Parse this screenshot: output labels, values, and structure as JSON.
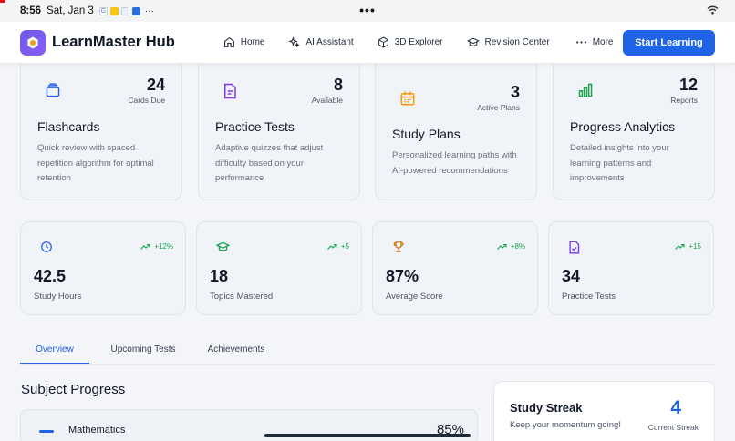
{
  "status_bar": {
    "time": "8:56",
    "date": "Sat, Jan 3",
    "dots": "•••",
    "overflow": "···"
  },
  "navbar": {
    "brand": "LearnMaster Hub",
    "items": [
      {
        "label": "Home",
        "icon": "home-icon"
      },
      {
        "label": "AI Assistant",
        "icon": "sparkles-icon"
      },
      {
        "label": "3D Explorer",
        "icon": "cube-icon"
      },
      {
        "label": "Revision Center",
        "icon": "graduation-cap-icon"
      },
      {
        "label": "More",
        "icon": "more-dots-icon"
      }
    ],
    "cta": "Start Learning"
  },
  "features": [
    {
      "title": "Flashcards",
      "count": "24",
      "count_label": "Cards Due",
      "description": "Quick review with spaced repetition algorithm for optimal retention",
      "icon": "cards-icon",
      "color": "#2563eb"
    },
    {
      "title": "Practice Tests",
      "count": "8",
      "count_label": "Available",
      "description": "Adaptive quizzes that adjust difficulty based on your performance",
      "icon": "document-icon",
      "color": "#7c3aed"
    },
    {
      "title": "Study Plans",
      "count": "3",
      "count_label": "Active Plans",
      "description": "Personalized learning paths with AI-powered recommendations",
      "icon": "calendar-icon",
      "color": "#f59e0b"
    },
    {
      "title": "Progress Analytics",
      "count": "12",
      "count_label": "Reports",
      "description": "Detailed insights into your learning patterns and improvements",
      "icon": "bar-chart-icon",
      "color": "#16a34a"
    }
  ],
  "stats": [
    {
      "value": "42.5",
      "label": "Study Hours",
      "trend": "+12%",
      "icon": "clock-icon",
      "color": "#2563eb"
    },
    {
      "value": "18",
      "label": "Topics Mastered",
      "trend": "+5",
      "icon": "graduation-cap-icon",
      "color": "#16a34a"
    },
    {
      "value": "87%",
      "label": "Average Score",
      "trend": "+8%",
      "icon": "trophy-icon",
      "color": "#d97706"
    },
    {
      "value": "34",
      "label": "Practice Tests",
      "trend": "+15",
      "icon": "document-check-icon",
      "color": "#7c3aed"
    }
  ],
  "tabs": [
    {
      "label": "Overview",
      "active": true
    },
    {
      "label": "Upcoming Tests",
      "active": false
    },
    {
      "label": "Achievements",
      "active": false
    }
  ],
  "subject_progress": {
    "title": "Subject Progress",
    "items": [
      {
        "name": "Mathematics",
        "percent": "85%"
      }
    ]
  },
  "streak": {
    "title": "Study Streak",
    "subtitle": "Keep your momentum going!",
    "value": "4",
    "label": "Current Streak"
  }
}
